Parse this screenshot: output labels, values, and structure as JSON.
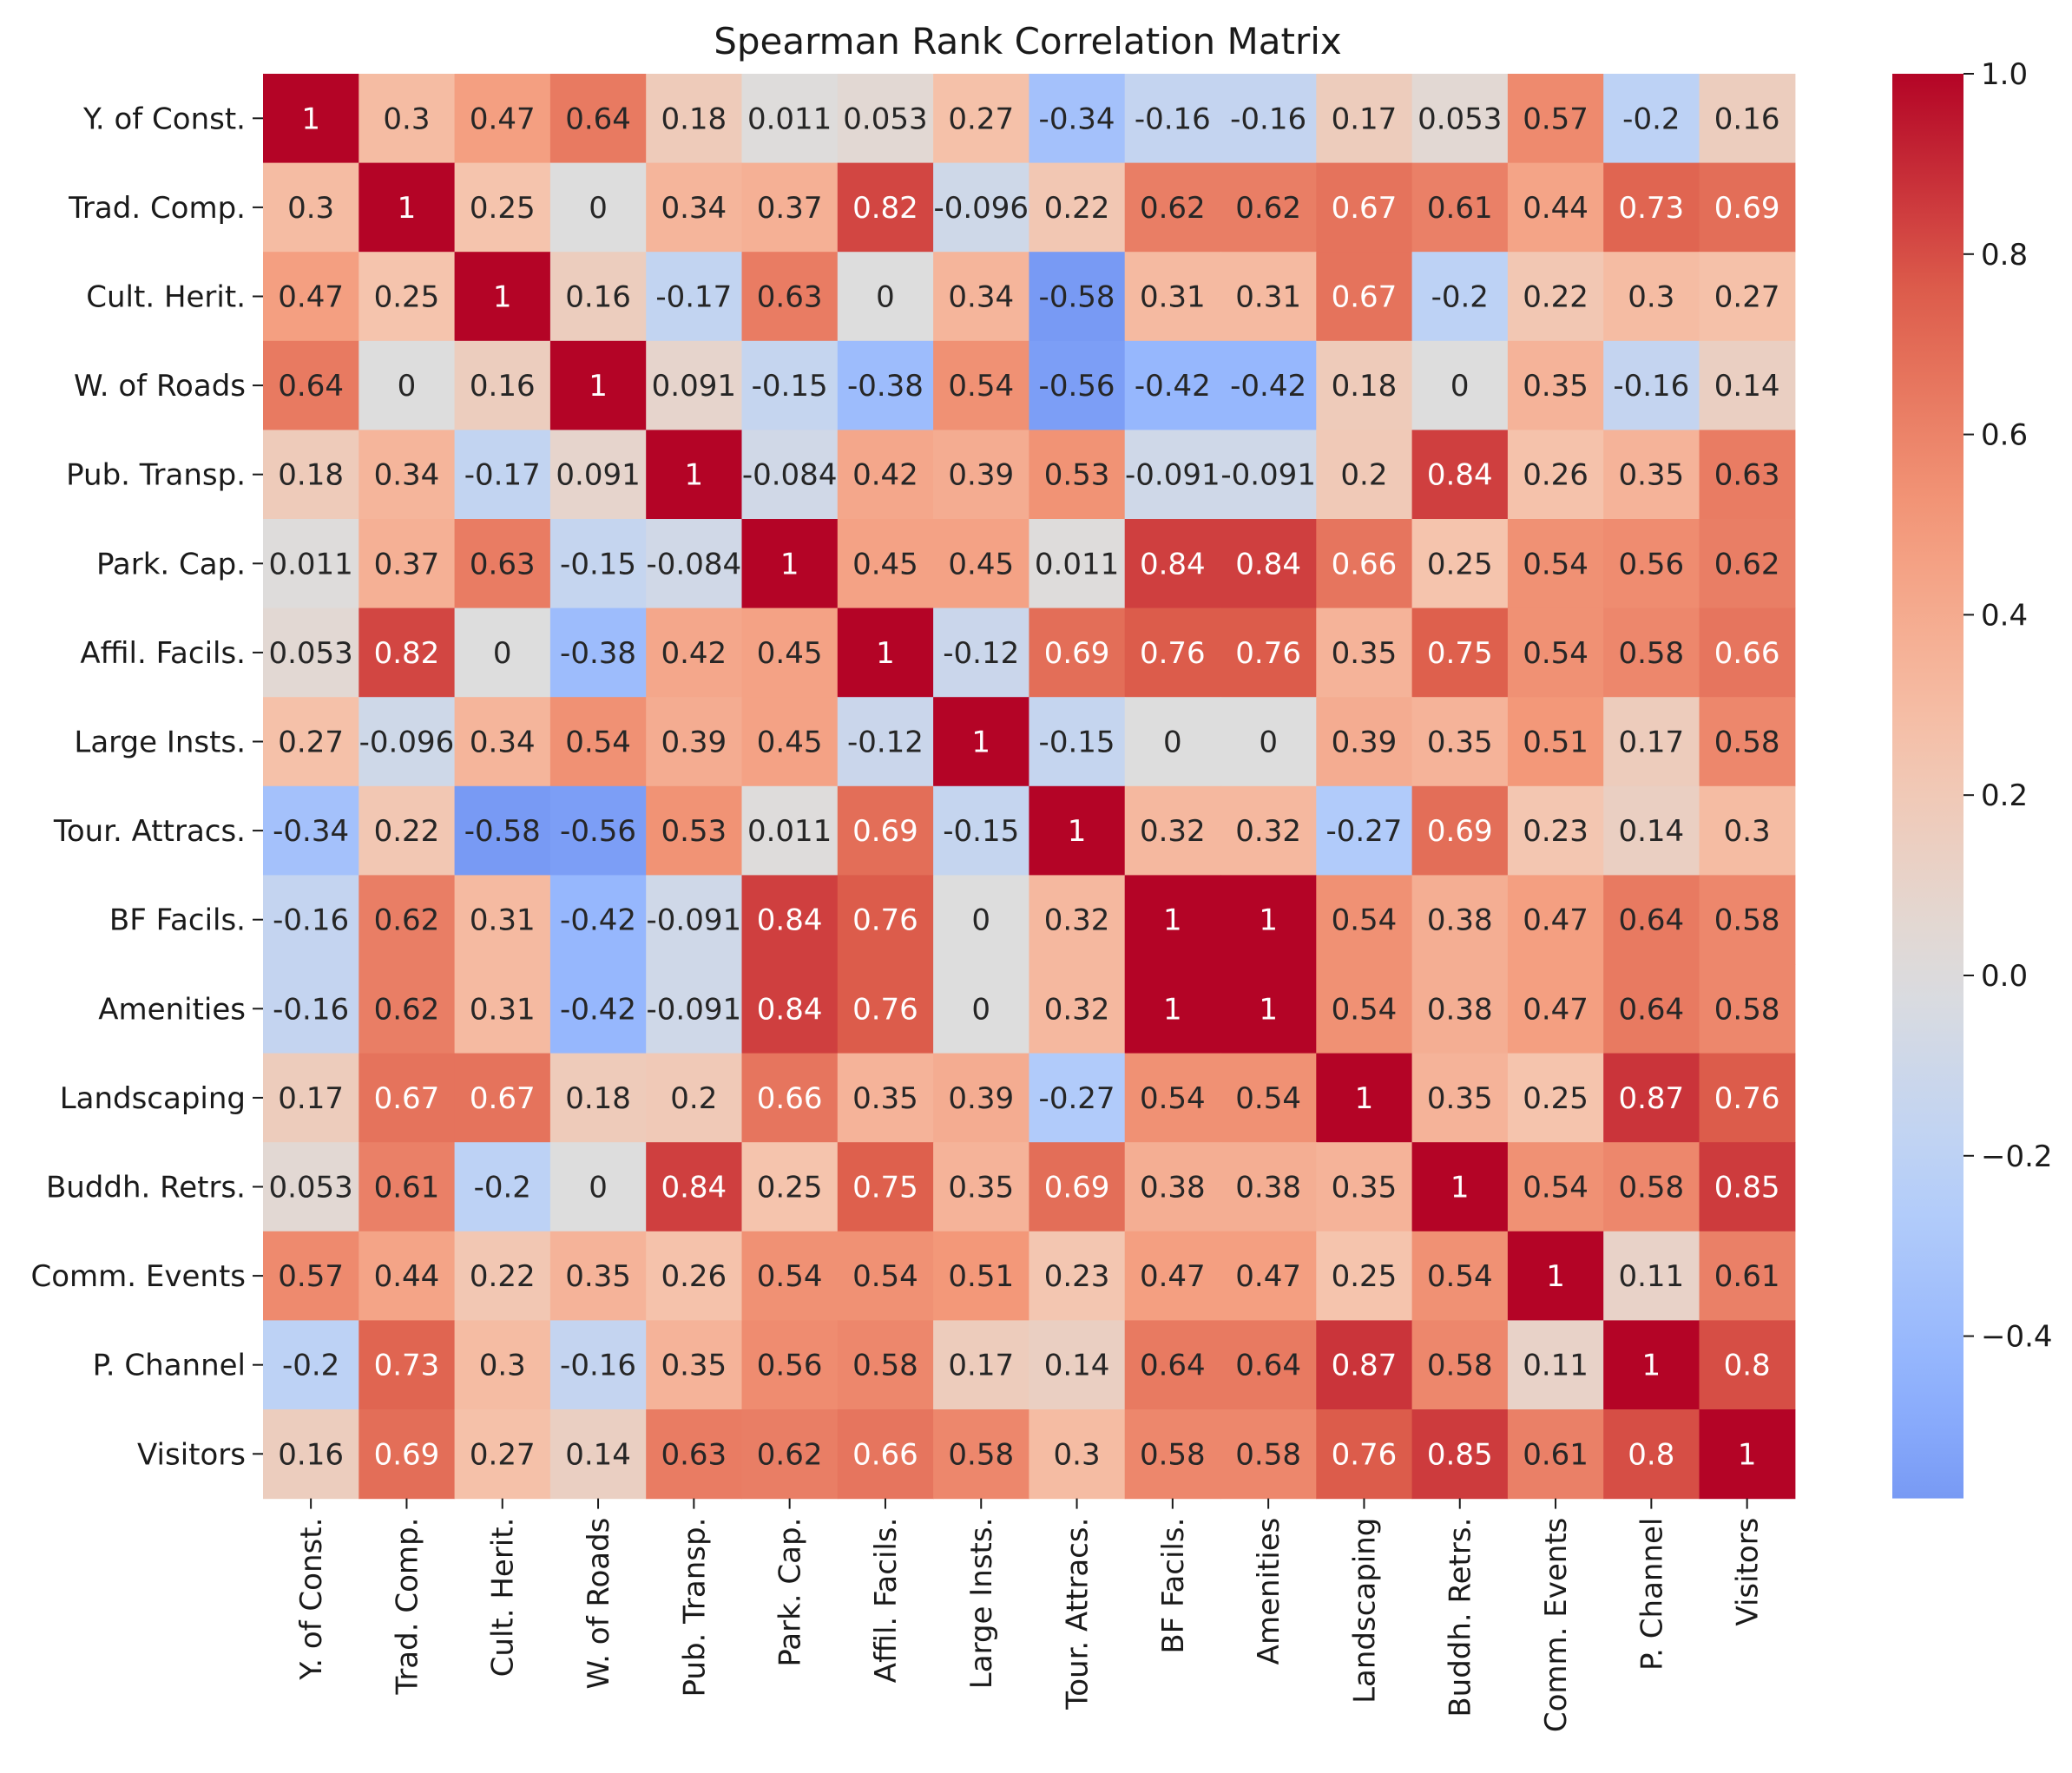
{
  "chart_data": {
    "type": "heatmap",
    "title": "Spearman Rank Correlation Matrix",
    "xlabel": "",
    "ylabel": "",
    "labels": [
      "Y. of Const.",
      "Trad. Comp.",
      "Cult. Herit.",
      "W. of Roads",
      "Pub. Transp.",
      "Park. Cap.",
      "Affil. Facils.",
      "Large Insts.",
      "Tour. Attracs.",
      "BF Facils.",
      "Amenities",
      "Landscaping",
      "Buddh. Retrs.",
      "Comm. Events",
      "P. Channel",
      "Visitors"
    ],
    "matrix": [
      [
        "1",
        "0.3",
        "0.47",
        "0.64",
        "0.18",
        "0.011",
        "0.053",
        "0.27",
        "-0.34",
        "-0.16",
        "-0.16",
        "0.17",
        "0.053",
        "0.57",
        "-0.2",
        "0.16"
      ],
      [
        "0.3",
        "1",
        "0.25",
        "0",
        "0.34",
        "0.37",
        "0.82",
        "-0.096",
        "0.22",
        "0.62",
        "0.62",
        "0.67",
        "0.61",
        "0.44",
        "0.73",
        "0.69"
      ],
      [
        "0.47",
        "0.25",
        "1",
        "0.16",
        "-0.17",
        "0.63",
        "0",
        "0.34",
        "-0.58",
        "0.31",
        "0.31",
        "0.67",
        "-0.2",
        "0.22",
        "0.3",
        "0.27"
      ],
      [
        "0.64",
        "0",
        "0.16",
        "1",
        "0.091",
        "-0.15",
        "-0.38",
        "0.54",
        "-0.56",
        "-0.42",
        "-0.42",
        "0.18",
        "0",
        "0.35",
        "-0.16",
        "0.14"
      ],
      [
        "0.18",
        "0.34",
        "-0.17",
        "0.091",
        "1",
        "-0.084",
        "0.42",
        "0.39",
        "0.53",
        "-0.091",
        "-0.091",
        "0.2",
        "0.84",
        "0.26",
        "0.35",
        "0.63"
      ],
      [
        "0.011",
        "0.37",
        "0.63",
        "-0.15",
        "-0.084",
        "1",
        "0.45",
        "0.45",
        "0.011",
        "0.84",
        "0.84",
        "0.66",
        "0.25",
        "0.54",
        "0.56",
        "0.62"
      ],
      [
        "0.053",
        "0.82",
        "0",
        "-0.38",
        "0.42",
        "0.45",
        "1",
        "-0.12",
        "0.69",
        "0.76",
        "0.76",
        "0.35",
        "0.75",
        "0.54",
        "0.58",
        "0.66"
      ],
      [
        "0.27",
        "-0.096",
        "0.34",
        "0.54",
        "0.39",
        "0.45",
        "-0.12",
        "1",
        "-0.15",
        "0",
        "0",
        "0.39",
        "0.35",
        "0.51",
        "0.17",
        "0.58"
      ],
      [
        "-0.34",
        "0.22",
        "-0.58",
        "-0.56",
        "0.53",
        "0.011",
        "0.69",
        "-0.15",
        "1",
        "0.32",
        "0.32",
        "-0.27",
        "0.69",
        "0.23",
        "0.14",
        "0.3"
      ],
      [
        "-0.16",
        "0.62",
        "0.31",
        "-0.42",
        "-0.091",
        "0.84",
        "0.76",
        "0",
        "0.32",
        "1",
        "1",
        "0.54",
        "0.38",
        "0.47",
        "0.64",
        "0.58"
      ],
      [
        "-0.16",
        "0.62",
        "0.31",
        "-0.42",
        "-0.091",
        "0.84",
        "0.76",
        "0",
        "0.32",
        "1",
        "1",
        "0.54",
        "0.38",
        "0.47",
        "0.64",
        "0.58"
      ],
      [
        "0.17",
        "0.67",
        "0.67",
        "0.18",
        "0.2",
        "0.66",
        "0.35",
        "0.39",
        "-0.27",
        "0.54",
        "0.54",
        "1",
        "0.35",
        "0.25",
        "0.87",
        "0.76"
      ],
      [
        "0.053",
        "0.61",
        "-0.2",
        "0",
        "0.84",
        "0.25",
        "0.75",
        "0.35",
        "0.69",
        "0.38",
        "0.38",
        "0.35",
        "1",
        "0.54",
        "0.58",
        "0.85"
      ],
      [
        "0.57",
        "0.44",
        "0.22",
        "0.35",
        "0.26",
        "0.54",
        "0.54",
        "0.51",
        "0.23",
        "0.47",
        "0.47",
        "0.25",
        "0.54",
        "1",
        "0.11",
        "0.61"
      ],
      [
        "-0.2",
        "0.73",
        "0.3",
        "-0.16",
        "0.35",
        "0.56",
        "0.58",
        "0.17",
        "0.14",
        "0.64",
        "0.64",
        "0.87",
        "0.58",
        "0.11",
        "1",
        "0.8"
      ],
      [
        "0.16",
        "0.69",
        "0.27",
        "0.14",
        "0.63",
        "0.62",
        "0.66",
        "0.58",
        "0.3",
        "0.58",
        "0.58",
        "0.76",
        "0.85",
        "0.61",
        "0.8",
        "1"
      ]
    ],
    "colormap": "coolwarm",
    "vmin": -0.58,
    "vmax": 1.0,
    "colorbar": {
      "ticks": [
        1.0,
        0.8,
        0.6,
        0.4,
        0.2,
        0.0,
        -0.2,
        -0.4
      ],
      "tick_labels": [
        "1.0",
        "0.8",
        "0.6",
        "0.4",
        "0.2",
        "0.0",
        "−0.2",
        "−0.4"
      ]
    }
  }
}
